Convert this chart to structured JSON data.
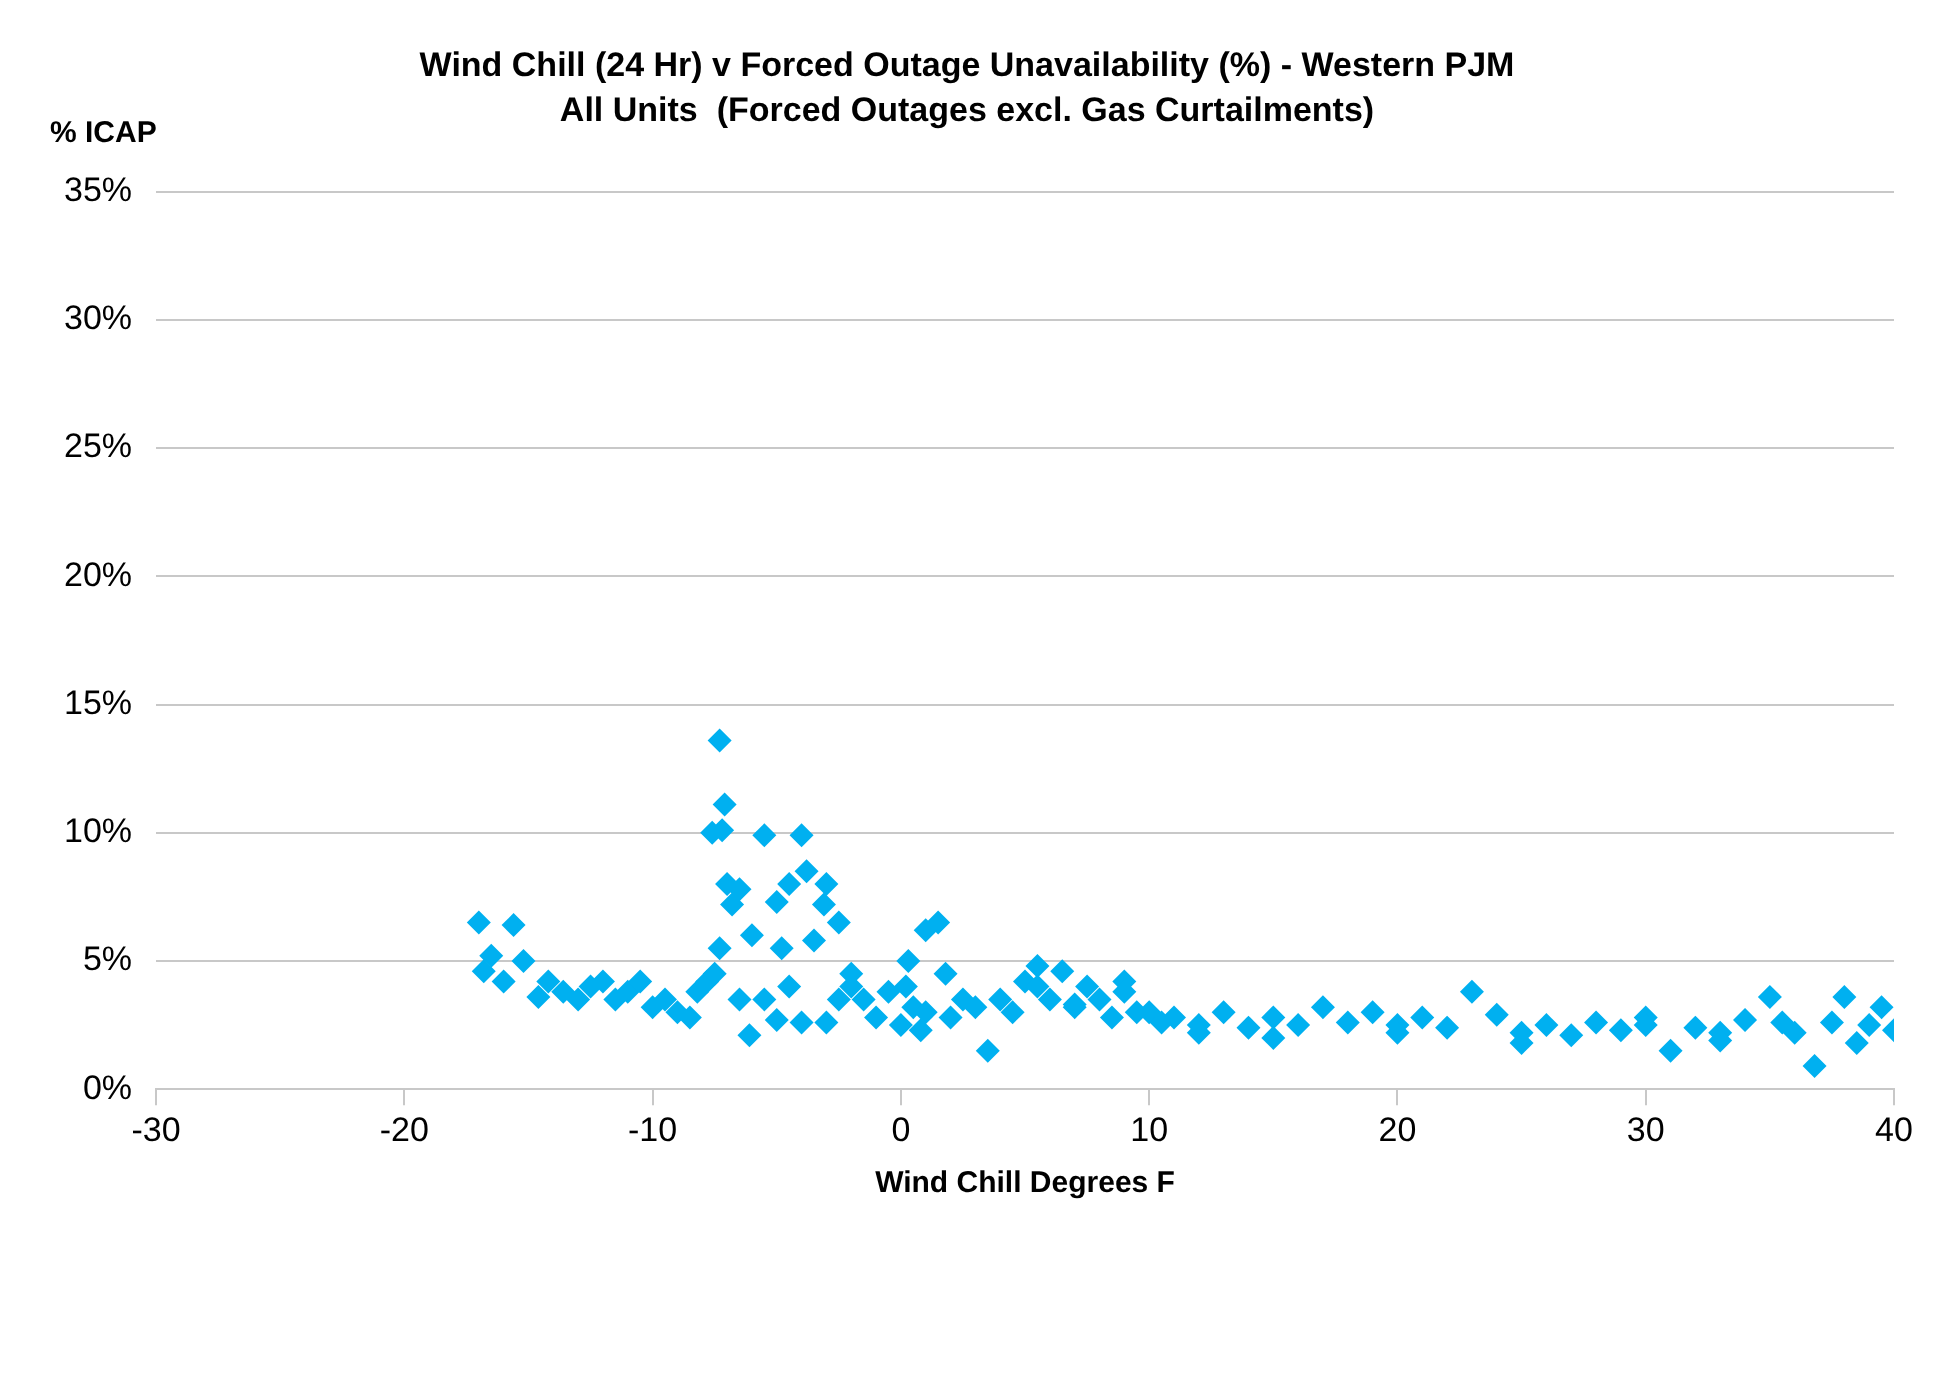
{
  "chart_data": {
    "type": "scatter",
    "title": "Wind Chill (24 Hr) v Forced Outage Unavailability (%) - Western PJM",
    "subtitle": "All Units  (Forced Outages excl. Gas Curtailments)",
    "xlabel": "Wind Chill Degrees F",
    "ylabel": "% ICAP",
    "xlim": [
      -30,
      40
    ],
    "xticks": [
      -30,
      -20,
      -10,
      0,
      10,
      20,
      30,
      40
    ],
    "ylim": [
      0,
      35
    ],
    "yticks": [
      {
        "value": 0,
        "label": "0%"
      },
      {
        "value": 5,
        "label": "5%"
      },
      {
        "value": 10,
        "label": "10%"
      },
      {
        "value": 15,
        "label": "15%"
      },
      {
        "value": 20,
        "label": "20%"
      },
      {
        "value": 25,
        "label": "25%"
      },
      {
        "value": 30,
        "label": "30%"
      },
      {
        "value": 35,
        "label": "35%"
      }
    ],
    "grid": "y",
    "legend": false,
    "marker": "diamond",
    "series": [
      {
        "color": "#00b0f0",
        "x": [
          -17,
          -15.6,
          -16.8,
          -16.5,
          -16,
          -15.2,
          -14.6,
          -14.2,
          -13.6,
          -13,
          -12.5,
          -12,
          -11.5,
          -11,
          -10.5,
          -10,
          -9.5,
          -9,
          -8.5,
          -8.2,
          -7.8,
          -7.3,
          -7.1,
          -7.6,
          -7.2,
          -7,
          -6.5,
          -6.8,
          -5.5,
          -4,
          -3.8,
          -4.5,
          -5,
          -3,
          -3.1,
          -2.5,
          -6,
          -7.3,
          -7.5,
          -6.5,
          -6.1,
          -5.5,
          -5,
          -4.5,
          -4,
          -3,
          -2.5,
          -2,
          -4.8,
          -3.5,
          -2,
          -1.5,
          -1,
          -0.5,
          0,
          0.2,
          0.5,
          1,
          1.5,
          1,
          1.8,
          2,
          0.8,
          0.3,
          2.5,
          3,
          3.5,
          4,
          4.5,
          5,
          5.5,
          6,
          6.5,
          7,
          7.5,
          8,
          8.5,
          9,
          9.5,
          10,
          10.5,
          11,
          12,
          13,
          14,
          15,
          16,
          17,
          18,
          19,
          20,
          21,
          22,
          23,
          24,
          25,
          26,
          27,
          28,
          29,
          30,
          31,
          32,
          33,
          34,
          35,
          36,
          36.8,
          37.5,
          38,
          38.5,
          39,
          39.5,
          40,
          5.5,
          7,
          9,
          12,
          15,
          20,
          25,
          30,
          33,
          35.5
        ],
        "values": [
          6.5,
          6.4,
          4.6,
          5.2,
          4.2,
          5,
          3.6,
          4.2,
          3.8,
          3.5,
          4,
          4.2,
          3.5,
          3.8,
          4.2,
          3.2,
          3.5,
          3,
          2.8,
          3.8,
          4.2,
          13.6,
          11.1,
          10,
          10.1,
          8,
          7.8,
          7.2,
          9.9,
          9.9,
          8.5,
          8,
          7.3,
          8,
          7.2,
          6.5,
          6,
          5.5,
          4.5,
          3.5,
          2.1,
          3.5,
          2.7,
          4,
          2.6,
          2.6,
          3.5,
          4,
          5.5,
          5.8,
          4.5,
          3.5,
          2.8,
          3.8,
          2.5,
          4,
          3.2,
          6.2,
          6.5,
          3,
          4.5,
          2.8,
          2.3,
          5,
          3.5,
          3.2,
          1.5,
          3.5,
          3,
          4.2,
          4.8,
          3.5,
          4.6,
          3.2,
          4,
          3.5,
          2.8,
          4.2,
          3,
          3,
          2.6,
          2.8,
          2.5,
          3,
          2.4,
          2.8,
          2.5,
          3.2,
          2.6,
          3,
          2.5,
          2.8,
          2.4,
          3.8,
          2.9,
          2.2,
          2.5,
          2.1,
          2.6,
          2.3,
          2.8,
          1.5,
          2.4,
          2.2,
          2.7,
          3.6,
          2.2,
          0.9,
          2.6,
          3.6,
          1.8,
          2.5,
          3.2,
          2.3,
          4,
          3.3,
          3.8,
          2.2,
          2,
          2.2,
          1.8,
          2.5,
          1.9,
          2.6
        ]
      }
    ]
  }
}
